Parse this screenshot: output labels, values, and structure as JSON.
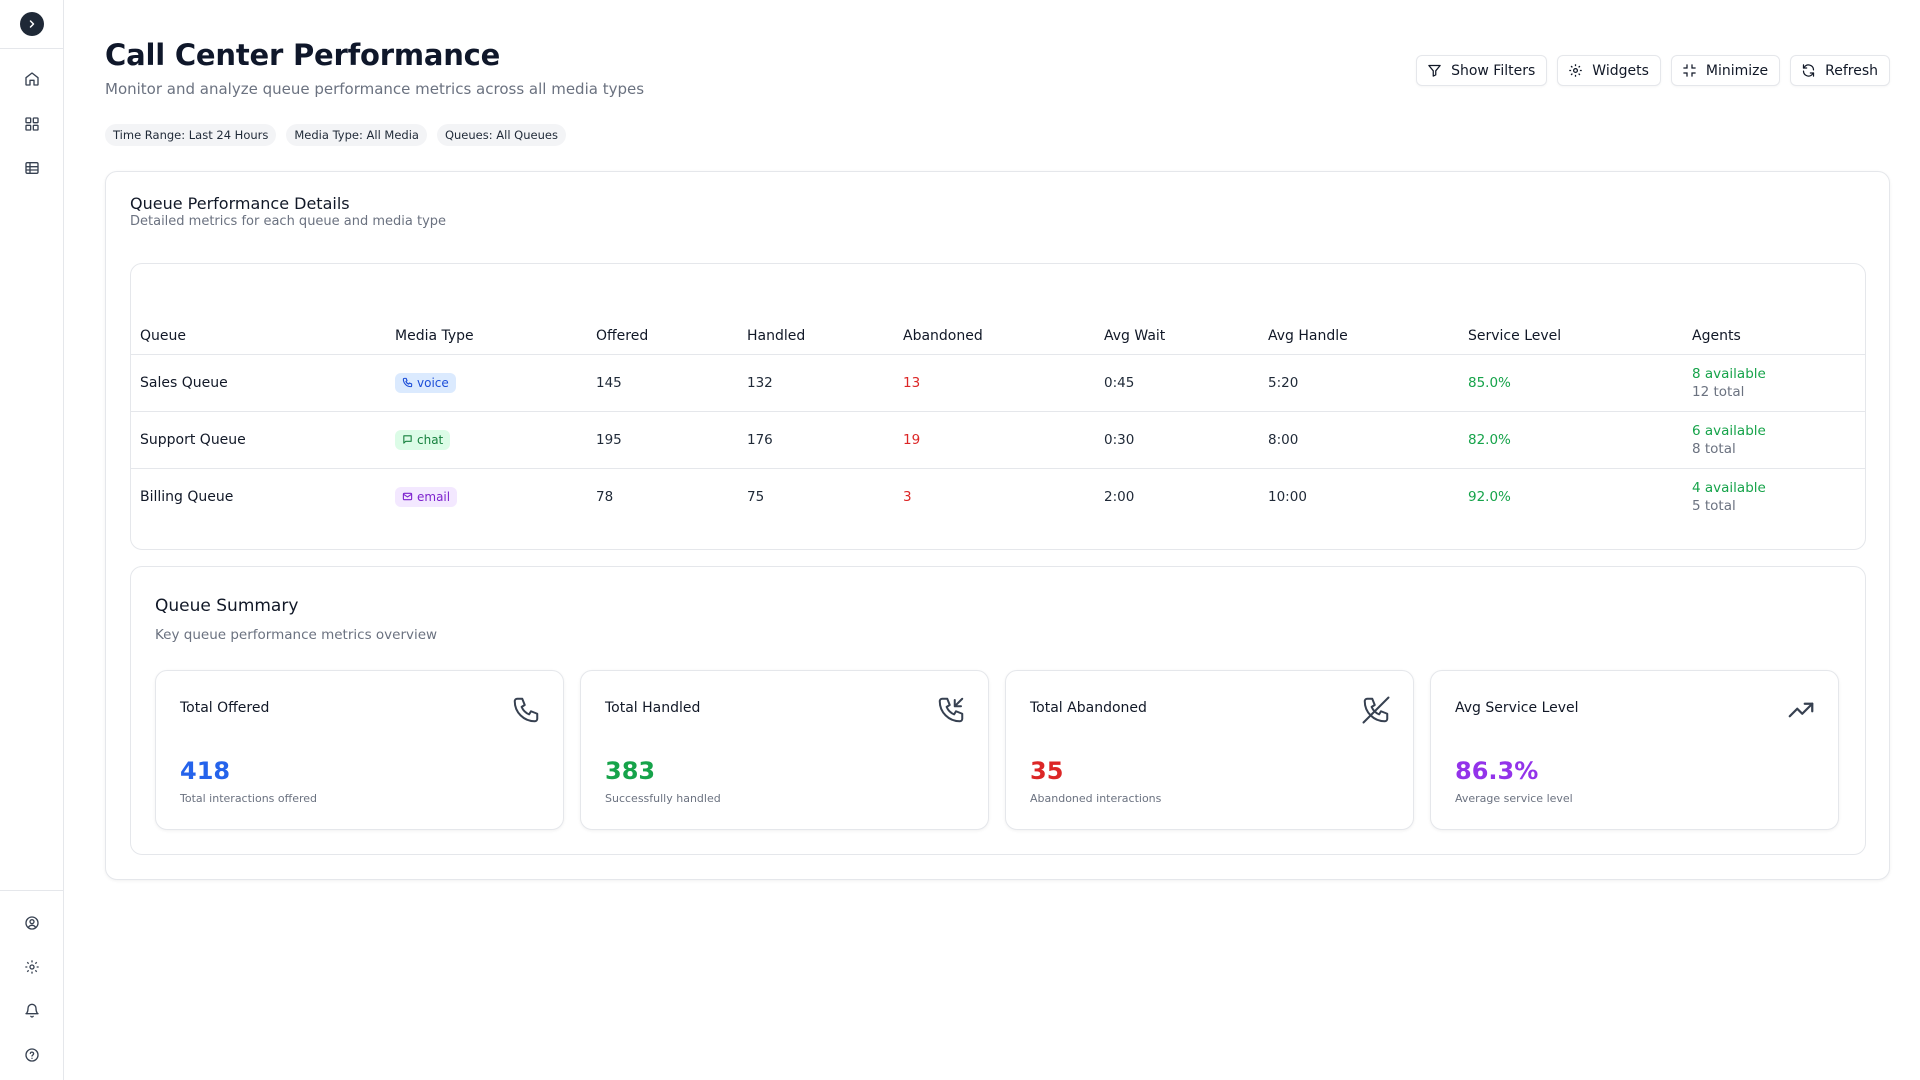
{
  "sidebar": {
    "toggle_icon": "chevron-right-icon",
    "top_items": [
      "home-icon",
      "dashboard-grid-icon",
      "table-icon"
    ],
    "bottom_items": [
      "user-circle-icon",
      "settings-icon",
      "bell-icon",
      "help-circle-icon"
    ]
  },
  "header": {
    "title": "Call Center Performance",
    "subtitle": "Monitor and analyze queue performance metrics across all media types"
  },
  "toolbar": {
    "show_filters": "Show Filters",
    "widgets": "Widgets",
    "minimize": "Minimize",
    "refresh": "Refresh"
  },
  "filters": {
    "time_range": "Time Range: Last 24 Hours",
    "media_type": "Media Type: All Media",
    "queues": "Queues: All Queues"
  },
  "details": {
    "title": "Queue Performance Details",
    "description": "Detailed metrics for each queue and media type",
    "columns": [
      "Queue",
      "Media Type",
      "Offered",
      "Handled",
      "Abandoned",
      "Avg Wait",
      "Avg Handle",
      "Service Level",
      "Agents"
    ],
    "rows": [
      {
        "queue": "Sales Queue",
        "media": "voice",
        "offered": "145",
        "handled": "132",
        "abandoned": "13",
        "avg_wait": "0:45",
        "avg_handle": "5:20",
        "service_level": "85.0%",
        "agents_available": "8 available",
        "agents_total": "12 total"
      },
      {
        "queue": "Support Queue",
        "media": "chat",
        "offered": "195",
        "handled": "176",
        "abandoned": "19",
        "avg_wait": "0:30",
        "avg_handle": "8:00",
        "service_level": "82.0%",
        "agents_available": "6 available",
        "agents_total": "8 total"
      },
      {
        "queue": "Billing Queue",
        "media": "email",
        "offered": "78",
        "handled": "75",
        "abandoned": "3",
        "avg_wait": "2:00",
        "avg_handle": "10:00",
        "service_level": "92.0%",
        "agents_available": "4 available",
        "agents_total": "5 total"
      }
    ]
  },
  "summary": {
    "title": "Queue Summary",
    "description": "Key queue performance metrics overview",
    "metrics": [
      {
        "label": "Total Offered",
        "value": "418",
        "sub": "Total interactions offered",
        "color": "#2563eb",
        "icon": "phone-icon"
      },
      {
        "label": "Total Handled",
        "value": "383",
        "sub": "Successfully handled",
        "color": "#16a34a",
        "icon": "phone-incoming-icon"
      },
      {
        "label": "Total Abandoned",
        "value": "35",
        "sub": "Abandoned interactions",
        "color": "#dc2626",
        "icon": "phone-off-icon"
      },
      {
        "label": "Avg Service Level",
        "value": "86.3%",
        "sub": "Average service level",
        "color": "#9333ea",
        "icon": "trending-up-icon"
      }
    ]
  },
  "colors": {
    "voice_bg": "#dbeafe",
    "voice_fg": "#1d4ed8",
    "chat_bg": "#dcfce7",
    "chat_fg": "#15803d",
    "email_bg": "#f3e8ff",
    "email_fg": "#7e22ce",
    "positive": "#16a34a",
    "negative": "#dc2626"
  }
}
